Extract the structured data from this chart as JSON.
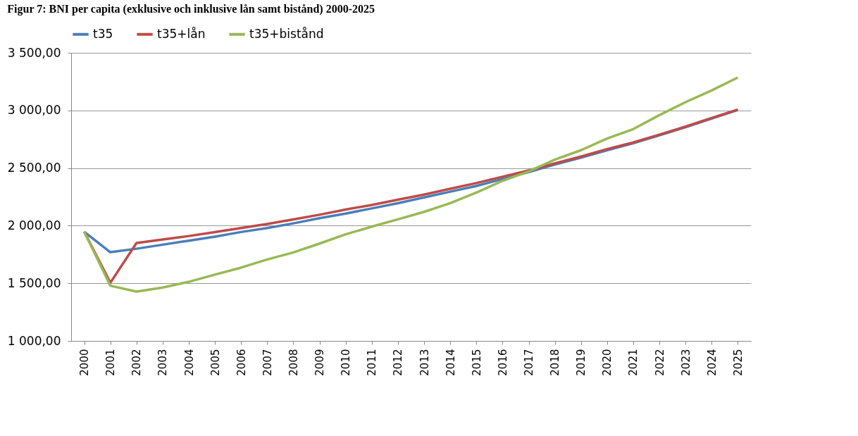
{
  "chart_data": {
    "type": "line",
    "title": "Figur 7: BNI per capita (exklusive och inklusive lån samt bistånd) 2000-2025",
    "categories": [
      "2000",
      "2001",
      "2002",
      "2003",
      "2004",
      "2005",
      "2006",
      "2007",
      "2008",
      "2009",
      "2010",
      "2011",
      "2012",
      "2013",
      "2014",
      "2015",
      "2016",
      "2017",
      "2018",
      "2019",
      "2020",
      "2021",
      "2022",
      "2023",
      "2024",
      "2025"
    ],
    "series": [
      {
        "name": "t35",
        "color": "#4a7ebb",
        "values": [
          1947,
          1770,
          1800,
          1835,
          1870,
          1905,
          1945,
          1980,
          2020,
          2065,
          2105,
          2150,
          2195,
          2245,
          2295,
          2345,
          2405,
          2465,
          2530,
          2590,
          2655,
          2715,
          2785,
          2855,
          2930,
          3005
        ]
      },
      {
        "name": "t35+lån",
        "color": "#be4b48",
        "values": [
          1947,
          1505,
          1850,
          1880,
          1910,
          1945,
          1980,
          2015,
          2055,
          2095,
          2140,
          2180,
          2225,
          2270,
          2320,
          2370,
          2425,
          2480,
          2540,
          2600,
          2665,
          2722,
          2790,
          2860,
          2935,
          3007
        ]
      },
      {
        "name": "t35+bistånd",
        "color": "#98b954",
        "values": [
          1947,
          1479,
          1428,
          1463,
          1513,
          1575,
          1636,
          1707,
          1768,
          1845,
          1925,
          1992,
          2055,
          2120,
          2196,
          2288,
          2389,
          2471,
          2573,
          2655,
          2756,
          2838,
          2960,
          3072,
          3174,
          3286
        ]
      }
    ],
    "ylim": [
      1000,
      3500
    ],
    "yticks": [
      {
        "value": 1000,
        "label": "1 000,00"
      },
      {
        "value": 1500,
        "label": "1 500,00"
      },
      {
        "value": 2000,
        "label": "2 000,00"
      },
      {
        "value": 2500,
        "label": "2 500,00"
      },
      {
        "value": 3000,
        "label": "3 000,00"
      },
      {
        "value": 3500,
        "label": "3 500,00"
      }
    ],
    "grid": "y",
    "legend": "top",
    "marker": "none",
    "line_style": "solid"
  }
}
